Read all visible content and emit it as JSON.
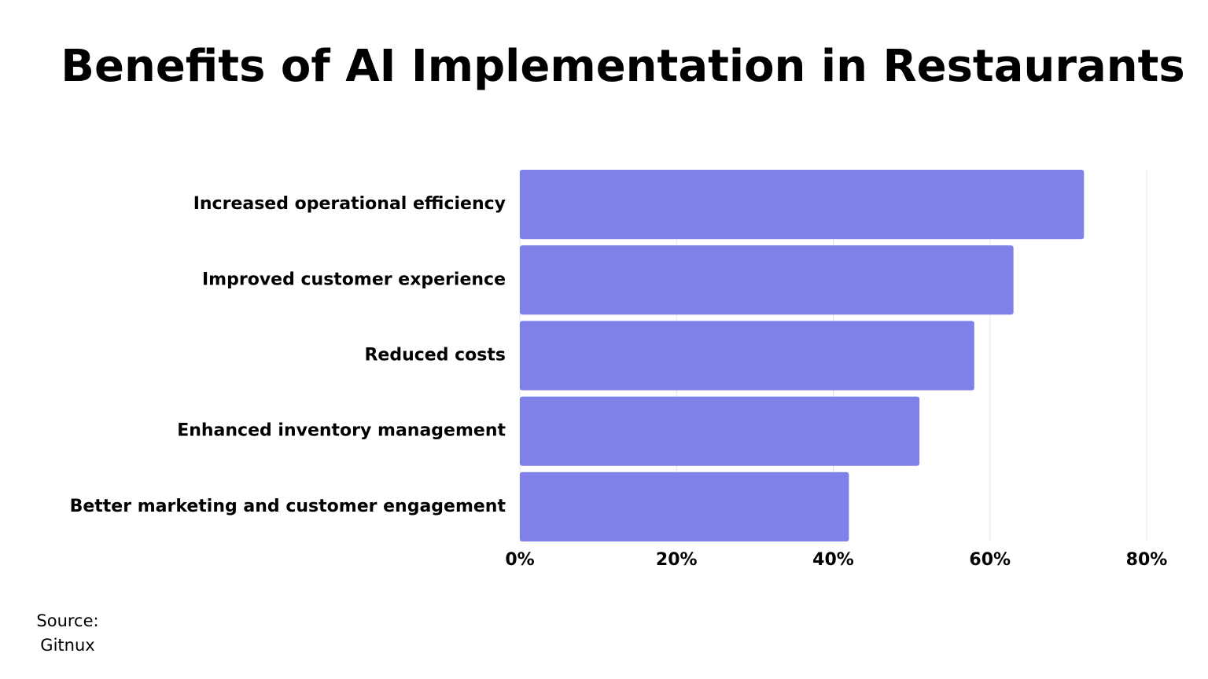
{
  "chart_data": {
    "type": "bar",
    "orientation": "horizontal",
    "title": "Benefits of AI Implementation in Restaurants",
    "categories": [
      "Increased operational efficiency",
      "Improved customer experience",
      "Reduced costs",
      "Enhanced inventory management",
      "Better marketing and customer engagement"
    ],
    "values": [
      72,
      63,
      58,
      51,
      42
    ],
    "color": "#7f81e8",
    "xlim": [
      0,
      80
    ],
    "xticks": [
      {
        "value": 0,
        "label": "0%"
      },
      {
        "value": 20,
        "label": "20%"
      },
      {
        "value": 40,
        "label": "40%"
      },
      {
        "value": 60,
        "label": "60%"
      },
      {
        "value": 80,
        "label": "80%"
      }
    ],
    "grid": true,
    "source_label": "Source:",
    "source": "Gitnux"
  }
}
